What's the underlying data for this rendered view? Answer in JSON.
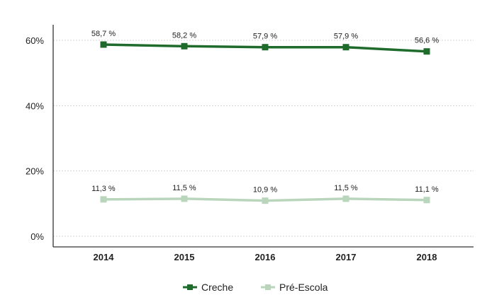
{
  "chart_data": {
    "type": "line",
    "title": "",
    "xlabel": "",
    "ylabel": "",
    "categories": [
      "2014",
      "2015",
      "2016",
      "2017",
      "2018"
    ],
    "ylim": [
      0,
      60
    ],
    "yticks": [
      0,
      20,
      40,
      60
    ],
    "ytick_labels": [
      "0%",
      "20%",
      "40%",
      "60%"
    ],
    "grid": true,
    "legend_position": "bottom",
    "series": [
      {
        "name": "Creche",
        "color": "#1e6b2c",
        "values": [
          58.7,
          58.2,
          57.9,
          57.9,
          56.6
        ],
        "labels": [
          "58,7 %",
          "58,2 %",
          "57,9 %",
          "57,9 %",
          "56,6 %"
        ]
      },
      {
        "name": "Pré-Escola",
        "color": "#b9d6bd",
        "values": [
          11.3,
          11.5,
          10.9,
          11.5,
          11.1
        ],
        "labels": [
          "11,3 %",
          "11,5 %",
          "10,9 %",
          "11,5 %",
          "11,1 %"
        ]
      }
    ]
  }
}
